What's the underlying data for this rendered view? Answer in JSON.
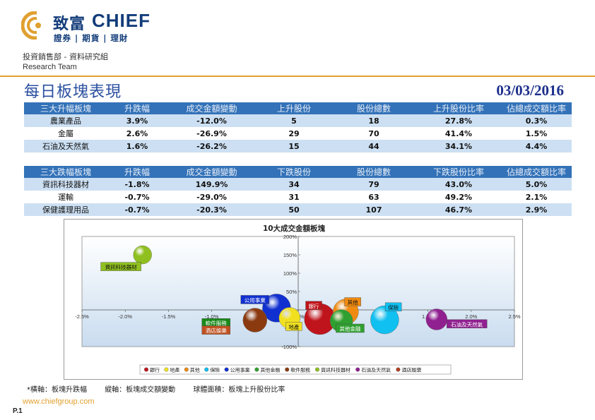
{
  "header": {
    "logo_zh": "致富",
    "logo_en": "CHIEF",
    "logo_tagline": "證券 | 期貨 | 理財",
    "department": "投資銷售部 - 資料研究組",
    "team": "Research Team",
    "title": "每日板塊表現",
    "date": "03/03/2016",
    "brand_color": "#123c7a",
    "accent_color": "#e0a030"
  },
  "gainers": {
    "headers": [
      "三大升幅板塊",
      "升跌幅",
      "成交金額變動",
      "上升股份",
      "股份總數",
      "上升股份比率",
      "佔總成交額比率"
    ],
    "rows": [
      {
        "sector": "農業產品",
        "change": "3.9%",
        "turnover_change": "-12.0%",
        "count": "5",
        "total": "18",
        "ratio": "27.8%",
        "share": "0.3%"
      },
      {
        "sector": "金屬",
        "change": "2.6%",
        "turnover_change": "-26.9%",
        "count": "29",
        "total": "70",
        "ratio": "41.4%",
        "share": "1.5%"
      },
      {
        "sector": "石油及天然氣",
        "change": "1.6%",
        "turnover_change": "-26.2%",
        "count": "15",
        "total": "44",
        "ratio": "34.1%",
        "share": "4.4%"
      }
    ]
  },
  "losers": {
    "headers": [
      "三大跌幅板塊",
      "升跌幅",
      "成交金額變動",
      "下跌股份",
      "股份總數",
      "下跌股份比率",
      "佔總成交額比率"
    ],
    "rows": [
      {
        "sector": "資訊科技器材",
        "change": "-1.8%",
        "turnover_change": "149.9%",
        "count": "34",
        "total": "79",
        "ratio": "43.0%",
        "share": "5.0%"
      },
      {
        "sector": "運輸",
        "change": "-0.7%",
        "turnover_change": "-29.0%",
        "count": "31",
        "total": "63",
        "ratio": "49.2%",
        "share": "2.1%"
      },
      {
        "sector": "保健護理用品",
        "change": "-0.7%",
        "turnover_change": "-20.3%",
        "count": "50",
        "total": "107",
        "ratio": "46.7%",
        "share": "2.9%"
      }
    ]
  },
  "chart_data": {
    "type": "scatter",
    "title": "10大成交金額板塊",
    "xlabel": "板塊升跌幅",
    "ylabel": "板塊成交額變動",
    "xlim": [
      -2.5,
      2.5
    ],
    "ylim": [
      -100,
      200
    ],
    "x_ticks": [
      "-2.5%",
      "-2.0%",
      "-1.5%",
      "-1.0%",
      "-0.5%",
      "0.0%",
      "0.5%",
      "1.0%",
      "1.5%",
      "2.0%",
      "2.5%"
    ],
    "y_ticks": [
      "200%",
      "150%",
      "100%",
      "50%",
      "0%",
      "-50%",
      "-100%"
    ],
    "legend_position": "bottom",
    "series": [
      {
        "name": "銀行",
        "x": 0.25,
        "y": -25,
        "size": 22,
        "color": "#c0141c",
        "label_color": "#c0141c"
      },
      {
        "name": "地產",
        "x": -0.1,
        "y": -22,
        "size": 15,
        "color": "#f0e020",
        "label_color": "#f0e020"
      },
      {
        "name": "其他",
        "x": 0.55,
        "y": -5,
        "size": 18,
        "color": "#f08a10",
        "label_color": "#f08a10"
      },
      {
        "name": "保險",
        "x": 1.0,
        "y": -27,
        "size": 20,
        "color": "#10c0f0",
        "label_color": "#10c0f0"
      },
      {
        "name": "公用事業",
        "x": -0.25,
        "y": 5,
        "size": 20,
        "color": "#1030d0",
        "label_color": "#1030d0"
      },
      {
        "name": "其他金融",
        "x": 0.5,
        "y": -30,
        "size": 16,
        "color": "#30a030",
        "label_color": "#30a030"
      },
      {
        "name": "軟件服務",
        "x": -0.5,
        "y": -28,
        "size": 17,
        "color": "#8b3a10",
        "label_color": "#1a8a1a"
      },
      {
        "name": "資訊科技器材",
        "x": -1.8,
        "y": 150,
        "size": 13,
        "color": "#90c020",
        "label_color": "#90c020"
      },
      {
        "name": "石油及天然氣",
        "x": 1.6,
        "y": -26,
        "size": 15,
        "color": "#902090",
        "label_color": "#902090"
      },
      {
        "name": "酒店娛樂",
        "x": -0.5,
        "y": -30,
        "size": 0,
        "color": "#b04020",
        "label_color": "#c05020"
      }
    ]
  },
  "footnote": {
    "x_axis": "*橫軸：板塊升跌幅",
    "y_axis": "縱軸：板塊成交額變動",
    "bubble": "球體面積：板塊上升股份比率"
  },
  "footer": {
    "website": "www.chiefgroup.com",
    "page": "P.1"
  }
}
